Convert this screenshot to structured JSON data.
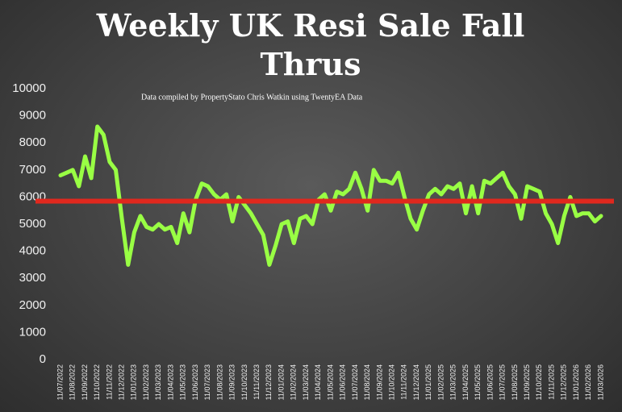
{
  "chart_data": {
    "type": "line",
    "title": "Weekly UK Resi Sale Fall Thrus",
    "annotation": "Data compiled by PropertyStato Chris Watkin using TwentyEA Data",
    "categories": [
      "11/07/2022",
      null,
      "11/08/2022",
      null,
      "11/09/2022",
      null,
      "11/10/2022",
      null,
      "11/11/2022",
      null,
      "11/12/2022",
      null,
      "11/01/2023",
      null,
      "11/02/2023",
      null,
      "11/03/2023",
      null,
      "11/04/2023",
      null,
      "11/05/2023",
      null,
      "11/06/2023",
      null,
      "11/07/2023",
      null,
      "11/08/2023",
      null,
      "11/09/2023",
      null,
      "11/10/2023",
      null,
      "11/11/2023",
      null,
      "11/12/2023",
      null,
      "11/01/2024",
      null,
      "11/02/2024",
      null,
      "11/03/2024",
      null,
      "11/04/2024",
      null,
      "11/05/2024",
      null,
      "11/06/2024",
      null,
      "11/07/2024",
      null,
      "11/08/2024",
      null,
      "11/09/2024",
      null,
      "11/10/2024",
      null,
      "11/11/2024",
      null,
      "11/12/2024",
      null,
      "11/01/2025",
      null,
      "11/02/2025",
      null,
      "11/03/2025",
      null,
      "11/04/2025",
      null,
      "11/05/2025",
      null,
      "11/06/2025",
      null,
      "11/07/2025",
      null,
      "11/08/2025",
      null,
      "11/09/2025",
      null,
      "11/10/2025",
      null,
      "11/11/2025",
      null,
      "11/12/2025",
      null,
      "11/01/2026",
      null,
      "11/02/2026",
      null,
      "11/03/2026"
    ],
    "series": [
      {
        "color": "#99ff44",
        "values": [
          6800,
          6900,
          7000,
          6400,
          7500,
          6700,
          8600,
          8300,
          7300,
          7000,
          5200,
          3500,
          4700,
          5300,
          4900,
          4800,
          5000,
          4800,
          4900,
          4300,
          5400,
          4700,
          5900,
          6500,
          6400,
          6100,
          5900,
          6100,
          5100,
          6000,
          5700,
          5400,
          5000,
          4600,
          3500,
          4200,
          5000,
          5100,
          4300,
          5200,
          5300,
          5000,
          5900,
          6100,
          5500,
          6200,
          6100,
          6300,
          6900,
          6300,
          5500,
          7000,
          6600,
          6600,
          6500,
          6900,
          6000,
          5200,
          4800,
          5500,
          6100,
          6300,
          6100,
          6400,
          6300,
          6500,
          5400,
          6400,
          5400,
          6600,
          6500,
          6700,
          6900,
          6400,
          6100,
          5200,
          6400,
          6300,
          6200,
          5400,
          5000,
          4300,
          5300,
          6000,
          5300,
          5400,
          5400,
          5100,
          5300
        ]
      }
    ],
    "reference_line": {
      "value": 5850,
      "color": "#e0281e"
    },
    "ylim": [
      0,
      10000
    ],
    "yticks": [
      0,
      1000,
      2000,
      3000,
      4000,
      5000,
      6000,
      7000,
      8000,
      9000,
      10000
    ],
    "grid": false
  }
}
